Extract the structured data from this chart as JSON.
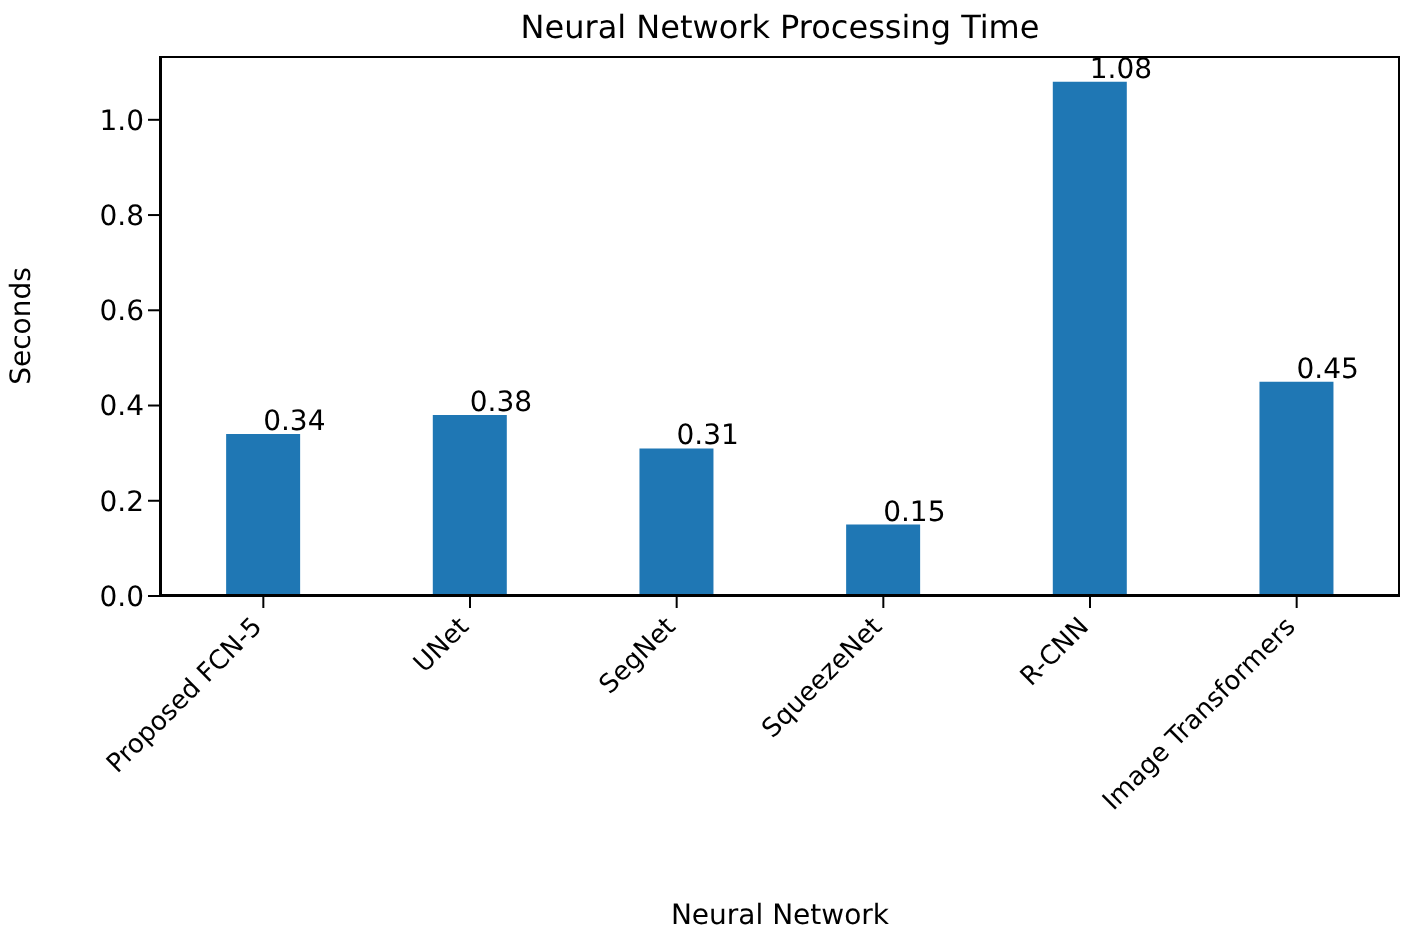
{
  "chart_data": {
    "type": "bar",
    "title": "Neural Network Processing Time",
    "xlabel": "Neural Network",
    "ylabel": "Seconds",
    "categories": [
      "Proposed FCN-5",
      "UNet",
      "SegNet",
      "SqueezeNet",
      "R-CNN",
      "Image Transformers"
    ],
    "values": [
      0.34,
      0.38,
      0.31,
      0.15,
      1.08,
      0.45
    ],
    "color": "#1f77b4",
    "ylim": [
      0,
      1.134
    ],
    "yticks": [
      {
        "value": 0,
        "label": "0.0"
      },
      {
        "value": 0.2,
        "label": "0.2"
      },
      {
        "value": 0.4,
        "label": "0.4"
      },
      {
        "value": 0.6,
        "label": "0.6"
      },
      {
        "value": 0.8,
        "label": "0.8"
      },
      {
        "value": 1.0,
        "label": "1.0"
      }
    ],
    "data_labels": true,
    "grid": false,
    "legend": false
  }
}
